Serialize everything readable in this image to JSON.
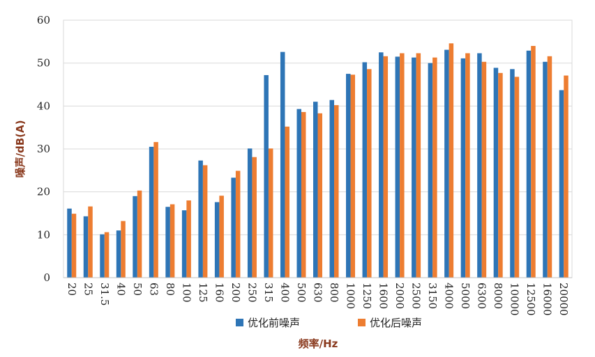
{
  "chart_data": {
    "type": "bar",
    "xlabel": "频率/Hz",
    "ylabel": "噪声/dB(A)",
    "ylim": [
      0,
      60
    ],
    "yticks": [
      0,
      10,
      20,
      30,
      40,
      50,
      60
    ],
    "grid": true,
    "legend_position": "bottom",
    "categories": [
      "20",
      "25",
      "31.5",
      "40",
      "50",
      "63",
      "80",
      "100",
      "125",
      "160",
      "200",
      "250",
      "315",
      "400",
      "500",
      "630",
      "800",
      "1000",
      "1250",
      "1600",
      "2000",
      "2500",
      "3150",
      "4000",
      "5000",
      "6300",
      "8000",
      "10000",
      "12500",
      "16000",
      "20000"
    ],
    "series": [
      {
        "name": "优化前噪声",
        "color": "#2e75b6",
        "values": [
          16.1,
          14.3,
          10.1,
          11.0,
          19.0,
          30.5,
          16.5,
          15.7,
          27.3,
          17.6,
          23.3,
          30.1,
          47.2,
          52.6,
          39.3,
          41.0,
          41.4,
          47.5,
          50.2,
          52.5,
          51.5,
          51.3,
          50.0,
          53.1,
          51.1,
          52.3,
          48.9,
          48.6,
          52.9,
          50.3,
          43.7
        ]
      },
      {
        "name": "优化后噪声",
        "color": "#ed7d31",
        "values": [
          14.9,
          16.6,
          10.6,
          13.2,
          20.3,
          31.6,
          17.1,
          18.0,
          26.2,
          19.1,
          24.9,
          28.1,
          30.1,
          35.2,
          38.6,
          38.3,
          40.2,
          47.3,
          48.6,
          51.6,
          52.3,
          52.3,
          51.3,
          54.6,
          52.3,
          50.3,
          47.7,
          46.8,
          54.0,
          51.6,
          47.1
        ]
      }
    ]
  }
}
